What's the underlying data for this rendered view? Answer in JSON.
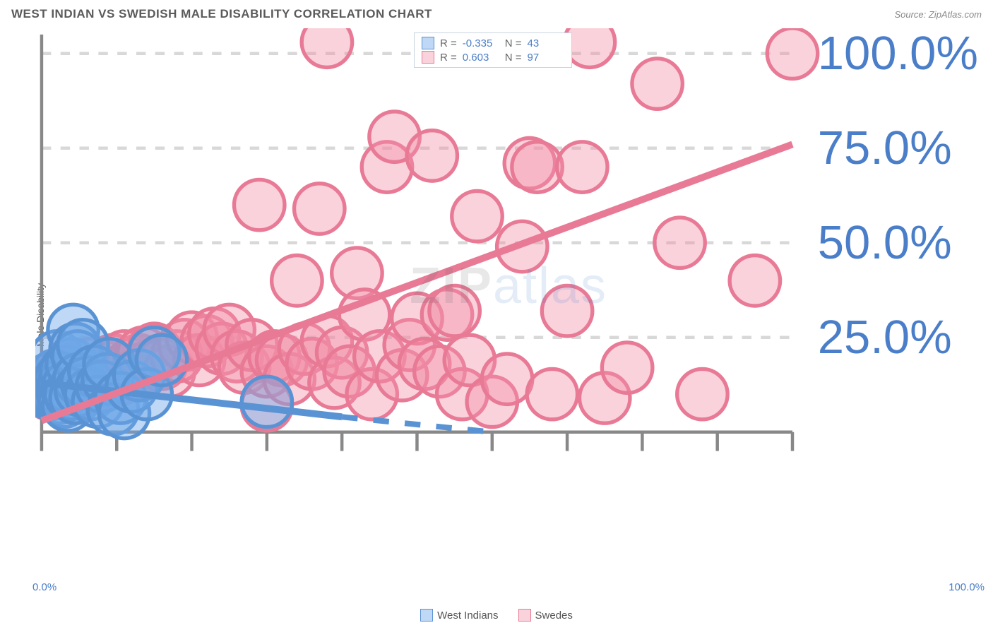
{
  "title": "WEST INDIAN VS SWEDISH MALE DISABILITY CORRELATION CHART",
  "source": "Source: ZipAtlas.com",
  "ylabel": "Male Disability",
  "watermark": {
    "part1": "ZIP",
    "part2": "atlas"
  },
  "chart": {
    "type": "scatter",
    "xlim": [
      0,
      100
    ],
    "ylim": [
      0,
      105
    ],
    "x_ticks": [
      0,
      10,
      20,
      30,
      40,
      50,
      60,
      70,
      80,
      90,
      100
    ],
    "y_gridlines": [
      25,
      50,
      75,
      100
    ],
    "x_axis_labels": [
      {
        "value": 0,
        "label": "0.0%"
      },
      {
        "value": 100,
        "label": "100.0%"
      }
    ],
    "y_axis_labels": [
      {
        "value": 25,
        "label": "25.0%"
      },
      {
        "value": 50,
        "label": "50.0%"
      },
      {
        "value": 75,
        "label": "75.0%"
      },
      {
        "value": 100,
        "label": "100.0%"
      }
    ],
    "grid_color": "#d8d8d8",
    "axis_color": "#888888",
    "background_color": "#ffffff",
    "marker_radius": 8,
    "marker_opacity": 0.45,
    "line_width": 2.2,
    "label_color": "#4a7ec9",
    "label_fontsize": 15
  },
  "series": [
    {
      "name": "West Indians",
      "color": "#6fa8e8",
      "fill": "rgba(111,168,232,0.45)",
      "stroke": "#5a93d4",
      "r_label": "R =",
      "r_value": "-0.335",
      "n_label": "N =",
      "n_value": "43",
      "trend": {
        "x1": 0,
        "y1": 13,
        "x2": 40,
        "y2": 4,
        "dash_from_x": 40,
        "dash_to_x": 60,
        "dash_to_y": 0
      },
      "points": [
        [
          0,
          11
        ],
        [
          0.5,
          12
        ],
        [
          1,
          12.5
        ],
        [
          1,
          14
        ],
        [
          1.2,
          10
        ],
        [
          1.5,
          13
        ],
        [
          1.7,
          11
        ],
        [
          1.8,
          15
        ],
        [
          2,
          12
        ],
        [
          2,
          20
        ],
        [
          2.3,
          9
        ],
        [
          2.5,
          14
        ],
        [
          2.7,
          11
        ],
        [
          3,
          8
        ],
        [
          3,
          13
        ],
        [
          3.2,
          16
        ],
        [
          3.5,
          7
        ],
        [
          3.5,
          12
        ],
        [
          3.8,
          10
        ],
        [
          4,
          18
        ],
        [
          4.2,
          27
        ],
        [
          4.5,
          9
        ],
        [
          4.5,
          22
        ],
        [
          4.8,
          20
        ],
        [
          5,
          14
        ],
        [
          5.2,
          11
        ],
        [
          5.5,
          23
        ],
        [
          6,
          13
        ],
        [
          6.5,
          10
        ],
        [
          7,
          16
        ],
        [
          7.5,
          8
        ],
        [
          8,
          12
        ],
        [
          8.8,
          14
        ],
        [
          9,
          18
        ],
        [
          9.5,
          6
        ],
        [
          10.5,
          9
        ],
        [
          11,
          5
        ],
        [
          12,
          12
        ],
        [
          13,
          15
        ],
        [
          14,
          10
        ],
        [
          15,
          21
        ],
        [
          16,
          19
        ],
        [
          30,
          8
        ]
      ]
    },
    {
      "name": "Swedes",
      "color": "#f28fa8",
      "fill": "rgba(242,143,168,0.40)",
      "stroke": "#e87a96",
      "r_label": "R =",
      "r_value": "0.603",
      "n_label": "N =",
      "n_value": "97",
      "trend": {
        "x1": 0,
        "y1": 3,
        "x2": 100,
        "y2": 76
      },
      "points": [
        [
          0,
          11
        ],
        [
          0.5,
          12
        ],
        [
          1,
          13
        ],
        [
          1,
          10
        ],
        [
          1.3,
          14
        ],
        [
          1.5,
          11
        ],
        [
          1.8,
          12
        ],
        [
          2,
          13
        ],
        [
          2.3,
          15
        ],
        [
          2.5,
          11
        ],
        [
          2.8,
          14
        ],
        [
          3,
          13
        ],
        [
          3.3,
          12
        ],
        [
          3.5,
          16
        ],
        [
          4,
          13
        ],
        [
          4.5,
          17
        ],
        [
          5,
          14
        ],
        [
          5.5,
          15
        ],
        [
          6,
          13
        ],
        [
          6.5,
          18
        ],
        [
          7,
          15
        ],
        [
          7.5,
          14
        ],
        [
          8,
          16
        ],
        [
          8.5,
          13
        ],
        [
          9,
          17
        ],
        [
          9.5,
          19
        ],
        [
          10,
          15
        ],
        [
          10.5,
          14
        ],
        [
          11,
          20
        ],
        [
          11.5,
          16
        ],
        [
          12,
          18
        ],
        [
          12.5,
          15
        ],
        [
          13,
          19
        ],
        [
          13.5,
          21
        ],
        [
          14,
          17
        ],
        [
          15,
          22
        ],
        [
          16,
          18
        ],
        [
          17,
          16
        ],
        [
          18,
          20
        ],
        [
          19,
          23
        ],
        [
          20,
          25
        ],
        [
          21,
          19
        ],
        [
          22,
          24
        ],
        [
          23,
          26
        ],
        [
          24,
          22
        ],
        [
          25,
          27
        ],
        [
          26,
          20
        ],
        [
          27,
          17
        ],
        [
          28,
          23
        ],
        [
          29,
          60
        ],
        [
          30,
          7
        ],
        [
          30,
          16
        ],
        [
          31,
          20
        ],
        [
          32,
          19
        ],
        [
          33,
          14
        ],
        [
          34,
          40
        ],
        [
          35,
          22
        ],
        [
          36,
          18
        ],
        [
          37,
          59
        ],
        [
          38,
          24
        ],
        [
          39,
          13
        ],
        [
          40,
          21
        ],
        [
          41,
          16
        ],
        [
          42,
          42
        ],
        [
          43,
          31
        ],
        [
          44,
          10
        ],
        [
          45,
          20
        ],
        [
          46,
          70
        ],
        [
          47,
          78
        ],
        [
          48,
          15
        ],
        [
          49,
          23
        ],
        [
          50,
          30
        ],
        [
          51,
          18
        ],
        [
          52,
          73
        ],
        [
          53,
          16
        ],
        [
          54,
          31
        ],
        [
          55,
          32
        ],
        [
          56,
          10
        ],
        [
          57,
          19
        ],
        [
          58,
          57
        ],
        [
          60,
          8
        ],
        [
          62,
          14
        ],
        [
          64,
          49
        ],
        [
          65,
          71
        ],
        [
          66,
          70
        ],
        [
          68,
          10
        ],
        [
          70,
          32
        ],
        [
          72,
          70
        ],
        [
          73,
          103
        ],
        [
          75,
          9
        ],
        [
          78,
          17
        ],
        [
          82,
          92
        ],
        [
          85,
          50
        ],
        [
          88,
          10
        ],
        [
          95,
          40
        ],
        [
          100,
          100
        ],
        [
          38,
          103
        ]
      ]
    }
  ],
  "bottom_legend": [
    {
      "label": "West Indians",
      "swatch_fill": "rgba(111,168,232,0.45)",
      "swatch_stroke": "#5a93d4"
    },
    {
      "label": "Swedes",
      "swatch_fill": "rgba(242,143,168,0.40)",
      "swatch_stroke": "#e87a96"
    }
  ]
}
